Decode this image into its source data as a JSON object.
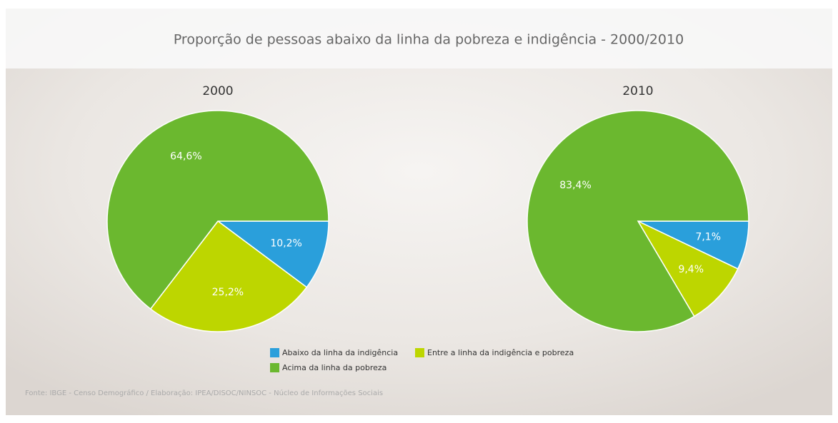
{
  "title": "Proporção de pessoas abaixo da linha da pobreza e indigência - 2000/2010",
  "chart_data": [
    {
      "type": "pie",
      "title": "2000",
      "categories": [
        "Abaixo da linha da indigência",
        "Entre a linha da indigência e pobreza",
        "Acima da linha da pobreza"
      ],
      "values": [
        10.2,
        25.2,
        64.6
      ],
      "value_labels": [
        "10,2%",
        "25,2%",
        "64,6%"
      ],
      "colors": [
        "#2a9fdb",
        "#bdd600",
        "#6bb82f"
      ]
    },
    {
      "type": "pie",
      "title": "2010",
      "categories": [
        "Abaixo da linha da indigência",
        "Entre a linha da indigência e pobreza",
        "Acima da linha da pobreza"
      ],
      "values": [
        7.1,
        9.4,
        83.4
      ],
      "value_labels": [
        "7,1%",
        "9,4%",
        "83,4%"
      ],
      "colors": [
        "#2a9fdb",
        "#bdd600",
        "#6bb82f"
      ]
    }
  ],
  "source": "Fonte: IBGE - Censo Demográfico / Elaboração: IPEA/DISOC/NINSOC - Núcleo de Informações Sociais"
}
